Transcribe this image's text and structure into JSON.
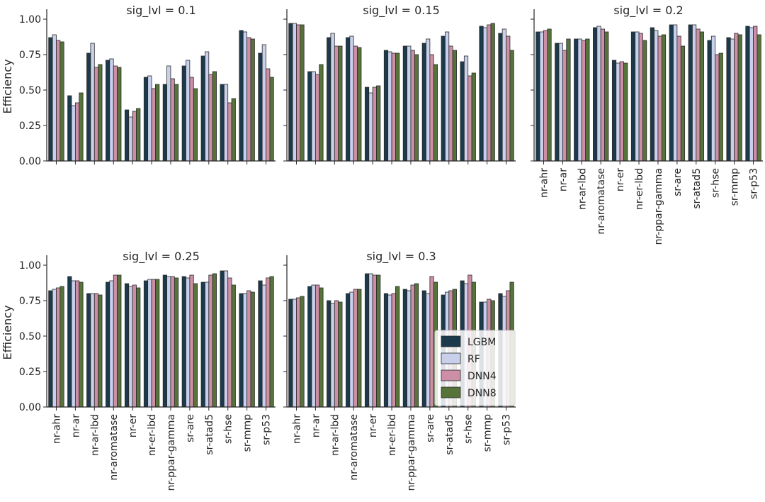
{
  "figure": {
    "ylabel": "Efficiency",
    "legend_placement": "inside-lower-right of sig_lvl = 0.3 panel"
  },
  "chart_data": [
    {
      "type": "bar",
      "title": "sig_lvl = 0.1",
      "ylabel": "Efficiency",
      "ylim": [
        0,
        1.05
      ],
      "yticks": [
        "0.00",
        "0.25",
        "0.50",
        "0.75",
        "1.00"
      ],
      "categories": [
        "nr-ahr",
        "nr-ar",
        "nr-ar-lbd",
        "nr-aromatase",
        "nr-er",
        "nr-er-lbd",
        "nr-ppar-gamma",
        "sr-are",
        "sr-atad5",
        "sr-hse",
        "sr-mmp",
        "sr-p53"
      ],
      "series": [
        {
          "name": "LGBM",
          "color": "#1b3a4b",
          "values": [
            0.87,
            0.46,
            0.76,
            0.71,
            0.36,
            0.59,
            0.54,
            0.67,
            0.74,
            0.54,
            0.92,
            0.76
          ]
        },
        {
          "name": "RF",
          "color": "#c8d0ec",
          "values": [
            0.89,
            0.39,
            0.83,
            0.72,
            0.31,
            0.6,
            0.67,
            0.71,
            0.77,
            0.54,
            0.91,
            0.82
          ]
        },
        {
          "name": "DNN4",
          "color": "#cc8fa6",
          "values": [
            0.85,
            0.41,
            0.66,
            0.67,
            0.35,
            0.51,
            0.58,
            0.59,
            0.61,
            0.41,
            0.87,
            0.65
          ]
        },
        {
          "name": "DNN8",
          "color": "#56743a",
          "values": [
            0.84,
            0.48,
            0.68,
            0.66,
            0.37,
            0.54,
            0.54,
            0.51,
            0.63,
            0.44,
            0.86,
            0.59
          ]
        }
      ]
    },
    {
      "type": "bar",
      "title": "sig_lvl = 0.15",
      "ylim": [
        0,
        1.05
      ],
      "categories": [
        "nr-ahr",
        "nr-ar",
        "nr-ar-lbd",
        "nr-aromatase",
        "nr-er",
        "nr-er-lbd",
        "nr-ppar-gamma",
        "sr-are",
        "sr-atad5",
        "sr-hse",
        "sr-mmp",
        "sr-p53"
      ],
      "series": [
        {
          "name": "LGBM",
          "color": "#1b3a4b",
          "values": [
            0.97,
            0.63,
            0.87,
            0.87,
            0.52,
            0.78,
            0.81,
            0.83,
            0.88,
            0.7,
            0.95,
            0.9
          ]
        },
        {
          "name": "RF",
          "color": "#c8d0ec",
          "values": [
            0.97,
            0.63,
            0.9,
            0.88,
            0.48,
            0.77,
            0.81,
            0.86,
            0.91,
            0.74,
            0.94,
            0.93
          ]
        },
        {
          "name": "DNN4",
          "color": "#cc8fa6",
          "values": [
            0.96,
            0.61,
            0.81,
            0.81,
            0.52,
            0.76,
            0.78,
            0.75,
            0.81,
            0.6,
            0.96,
            0.88
          ]
        },
        {
          "name": "DNN8",
          "color": "#56743a",
          "values": [
            0.96,
            0.68,
            0.81,
            0.8,
            0.53,
            0.76,
            0.75,
            0.68,
            0.78,
            0.62,
            0.97,
            0.78
          ]
        }
      ]
    },
    {
      "type": "bar",
      "title": "sig_lvl = 0.2",
      "ylim": [
        0,
        1.05
      ],
      "categories": [
        "nr-ahr",
        "nr-ar",
        "nr-ar-lbd",
        "nr-aromatase",
        "nr-er",
        "nr-er-lbd",
        "nr-ppar-gamma",
        "sr-are",
        "sr-atad5",
        "sr-hse",
        "sr-mmp",
        "sr-p53"
      ],
      "series": [
        {
          "name": "LGBM",
          "color": "#1b3a4b",
          "values": [
            0.91,
            0.83,
            0.86,
            0.94,
            0.71,
            0.91,
            0.94,
            0.96,
            0.96,
            0.85,
            0.87,
            0.95
          ]
        },
        {
          "name": "RF",
          "color": "#c8d0ec",
          "values": [
            0.91,
            0.83,
            0.86,
            0.95,
            0.69,
            0.91,
            0.92,
            0.96,
            0.96,
            0.88,
            0.86,
            0.94
          ]
        },
        {
          "name": "DNN4",
          "color": "#cc8fa6",
          "values": [
            0.92,
            0.78,
            0.85,
            0.93,
            0.7,
            0.9,
            0.88,
            0.88,
            0.93,
            0.75,
            0.9,
            0.95
          ]
        },
        {
          "name": "DNN8",
          "color": "#56743a",
          "values": [
            0.93,
            0.86,
            0.86,
            0.91,
            0.69,
            0.85,
            0.89,
            0.81,
            0.91,
            0.76,
            0.89,
            0.89
          ]
        }
      ]
    },
    {
      "type": "bar",
      "title": "sig_lvl = 0.25",
      "ylabel": "Efficiency",
      "ylim": [
        0,
        1.05
      ],
      "yticks": [
        "0.00",
        "0.25",
        "0.50",
        "0.75",
        "1.00"
      ],
      "categories": [
        "nr-ahr",
        "nr-ar",
        "nr-ar-lbd",
        "nr-aromatase",
        "nr-er",
        "nr-er-lbd",
        "nr-ppar-gamma",
        "sr-are",
        "sr-atad5",
        "sr-hse",
        "sr-mmp",
        "sr-p53"
      ],
      "series": [
        {
          "name": "LGBM",
          "color": "#1b3a4b",
          "values": [
            0.82,
            0.92,
            0.8,
            0.88,
            0.87,
            0.89,
            0.93,
            0.92,
            0.88,
            0.96,
            0.8,
            0.89
          ]
        },
        {
          "name": "RF",
          "color": "#c8d0ec",
          "values": [
            0.83,
            0.89,
            0.8,
            0.89,
            0.85,
            0.9,
            0.92,
            0.91,
            0.88,
            0.96,
            0.8,
            0.86
          ]
        },
        {
          "name": "DNN4",
          "color": "#cc8fa6",
          "values": [
            0.84,
            0.89,
            0.8,
            0.93,
            0.86,
            0.9,
            0.92,
            0.93,
            0.93,
            0.91,
            0.82,
            0.91
          ]
        },
        {
          "name": "DNN8",
          "color": "#56743a",
          "values": [
            0.85,
            0.88,
            0.79,
            0.93,
            0.84,
            0.9,
            0.91,
            0.87,
            0.94,
            0.86,
            0.81,
            0.92
          ]
        }
      ]
    },
    {
      "type": "bar",
      "title": "sig_lvl = 0.3",
      "ylim": [
        0,
        1.05
      ],
      "categories": [
        "nr-ahr",
        "nr-ar",
        "nr-ar-lbd",
        "nr-aromatase",
        "nr-er",
        "nr-er-lbd",
        "nr-ppar-gamma",
        "sr-are",
        "sr-atad5",
        "sr-hse",
        "sr-mmp",
        "sr-p53"
      ],
      "series": [
        {
          "name": "LGBM",
          "color": "#1b3a4b",
          "values": [
            0.76,
            0.85,
            0.75,
            0.8,
            0.94,
            0.8,
            0.83,
            0.82,
            0.79,
            0.89,
            0.74,
            0.8
          ]
        },
        {
          "name": "RF",
          "color": "#c8d0ec",
          "values": [
            0.76,
            0.86,
            0.73,
            0.81,
            0.94,
            0.79,
            0.82,
            0.8,
            0.81,
            0.87,
            0.74,
            0.78
          ]
        },
        {
          "name": "DNN4",
          "color": "#cc8fa6",
          "values": [
            0.77,
            0.86,
            0.75,
            0.83,
            0.93,
            0.8,
            0.86,
            0.92,
            0.82,
            0.93,
            0.76,
            0.82
          ]
        },
        {
          "name": "DNN8",
          "color": "#56743a",
          "values": [
            0.78,
            0.84,
            0.74,
            0.83,
            0.93,
            0.85,
            0.87,
            0.88,
            0.83,
            0.88,
            0.75,
            0.88
          ]
        }
      ]
    }
  ]
}
